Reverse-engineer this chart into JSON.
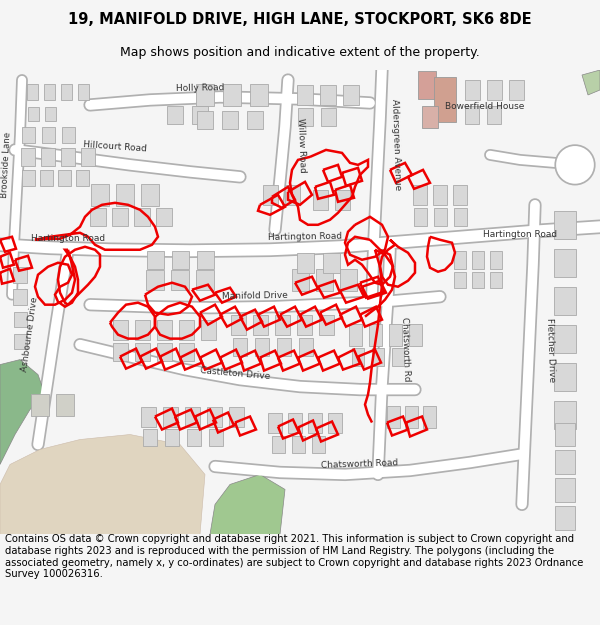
{
  "title_line1": "19, MANIFOLD DRIVE, HIGH LANE, STOCKPORT, SK6 8DE",
  "title_line2": "Map shows position and indicative extent of the property.",
  "footer_text": "Contains OS data © Crown copyright and database right 2021. This information is subject to Crown copyright and database rights 2023 and is reproduced with the permission of HM Land Registry. The polygons (including the associated geometry, namely x, y co-ordinates) are subject to Crown copyright and database rights 2023 Ordnance Survey 100026316.",
  "bg_color": "#f5f5f5",
  "map_bg": "#ffffff",
  "building_fill": "#d8d8d8",
  "building_edge": "#aaaaaa",
  "red_color": "#ee0000",
  "green_fill": "#8ab88a",
  "green2_fill": "#a0c890",
  "beige_fill": "#e0d5c0",
  "pink_fill": "#d9a8a0",
  "title_fontsize": 10.5,
  "subtitle_fontsize": 9,
  "footer_fontsize": 7.2
}
